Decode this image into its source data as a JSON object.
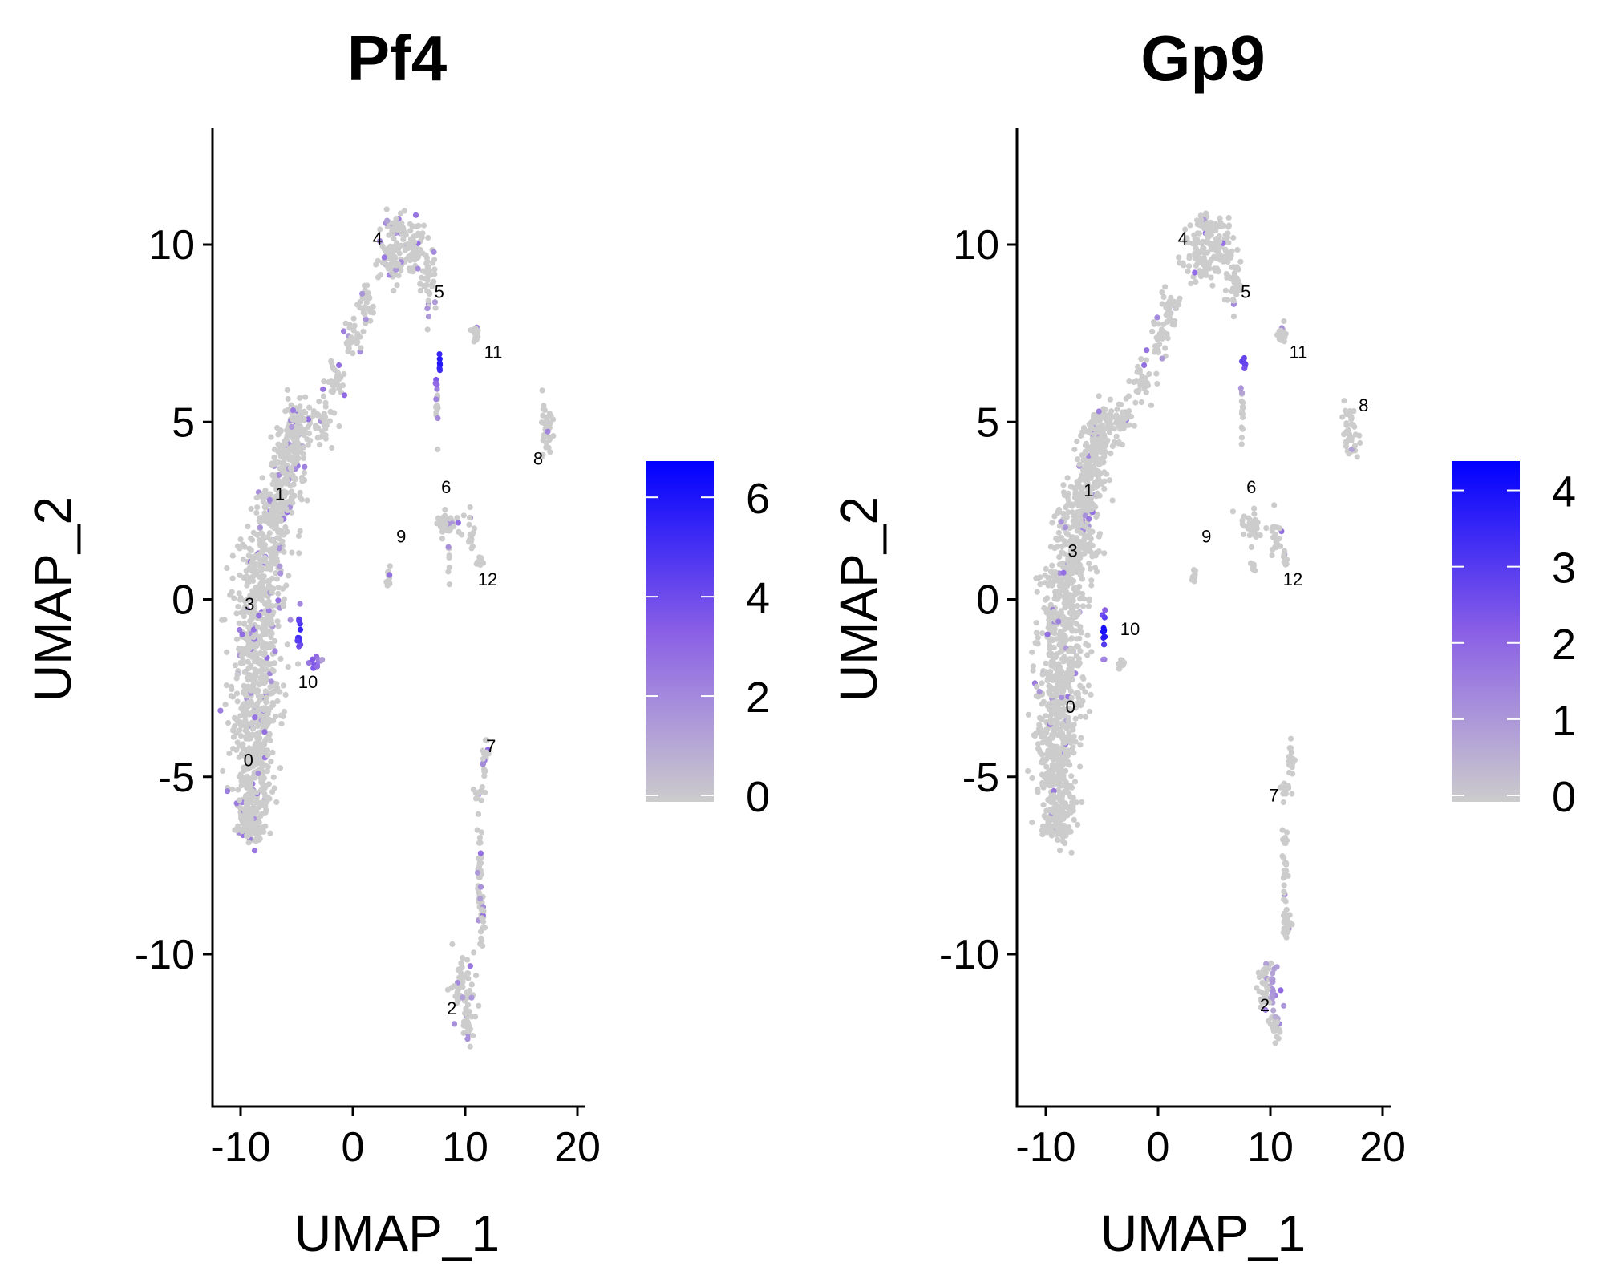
{
  "colors": {
    "low": "#cccccc",
    "mid": "#8a5fe6",
    "high": "#0000ff",
    "axis": "#000000"
  },
  "chart_data": [
    {
      "type": "scatter",
      "title": "Pf4",
      "xlabel": "UMAP_1",
      "ylabel": "UMAP_2",
      "xlim": [
        -12.5,
        20.5
      ],
      "ylim": [
        -14,
        13.2
      ],
      "xticks": [
        "-10",
        "0",
        "10",
        "20"
      ],
      "xtick_values": [
        -10,
        0,
        10,
        20
      ],
      "yticks": [
        "-10",
        "-5",
        "0",
        "5",
        "10"
      ],
      "ytick_values": [
        -10,
        -5,
        0,
        5,
        10
      ],
      "colorbar": {
        "min": 0,
        "max": 6.6,
        "ticks": [
          "0",
          "2",
          "4",
          "6"
        ],
        "tick_values": [
          0,
          2,
          4,
          6
        ],
        "placement": "right"
      },
      "clusters": [
        {
          "label": "0",
          "x": -9.3,
          "y": -4.7
        },
        {
          "label": "1",
          "x": -6.5,
          "y": 2.8
        },
        {
          "label": "2",
          "x": 8.8,
          "y": -11.7
        },
        {
          "label": "3",
          "x": -9.2,
          "y": -0.3
        },
        {
          "label": "4",
          "x": 2.2,
          "y": 10.0
        },
        {
          "label": "5",
          "x": 7.7,
          "y": 8.5
        },
        {
          "label": "6",
          "x": 8.3,
          "y": 3.0
        },
        {
          "label": "7",
          "x": 12.3,
          "y": -4.3
        },
        {
          "label": "8",
          "x": 16.5,
          "y": 3.8
        },
        {
          "label": "9",
          "x": 4.3,
          "y": 1.6
        },
        {
          "label": "10",
          "x": -4.0,
          "y": -2.5
        },
        {
          "label": "11",
          "x": 12.5,
          "y": 6.8
        },
        {
          "label": "12",
          "x": 12.0,
          "y": 0.4
        }
      ]
    },
    {
      "type": "scatter",
      "title": "Gp9",
      "xlabel": "UMAP_1",
      "ylabel": "UMAP_2",
      "xlim": [
        -12.5,
        20.5
      ],
      "ylim": [
        -14,
        13.2
      ],
      "xticks": [
        "-10",
        "0",
        "10",
        "20"
      ],
      "xtick_values": [
        -10,
        0,
        10,
        20
      ],
      "yticks": [
        "-10",
        "-5",
        "0",
        "5",
        "10"
      ],
      "ytick_values": [
        -10,
        -5,
        0,
        5,
        10
      ],
      "colorbar": {
        "min": 0,
        "max": 4.3,
        "ticks": [
          "0",
          "1",
          "2",
          "3",
          "4"
        ],
        "tick_values": [
          0,
          1,
          2,
          3,
          4
        ],
        "placement": "right"
      },
      "clusters": [
        {
          "label": "0",
          "x": -7.8,
          "y": -3.2
        },
        {
          "label": "1",
          "x": -6.2,
          "y": 2.9
        },
        {
          "label": "2",
          "x": 9.5,
          "y": -11.6
        },
        {
          "label": "3",
          "x": -7.6,
          "y": 1.2
        },
        {
          "label": "4",
          "x": 2.2,
          "y": 10.0
        },
        {
          "label": "5",
          "x": 7.8,
          "y": 8.5
        },
        {
          "label": "6",
          "x": 8.3,
          "y": 3.0
        },
        {
          "label": "7",
          "x": 10.3,
          "y": -5.7
        },
        {
          "label": "8",
          "x": 18.3,
          "y": 5.3
        },
        {
          "label": "9",
          "x": 4.3,
          "y": 1.6
        },
        {
          "label": "10",
          "x": -2.5,
          "y": -1.0
        },
        {
          "label": "11",
          "x": 12.5,
          "y": 6.8
        },
        {
          "label": "12",
          "x": 12.0,
          "y": 0.4
        }
      ]
    }
  ]
}
